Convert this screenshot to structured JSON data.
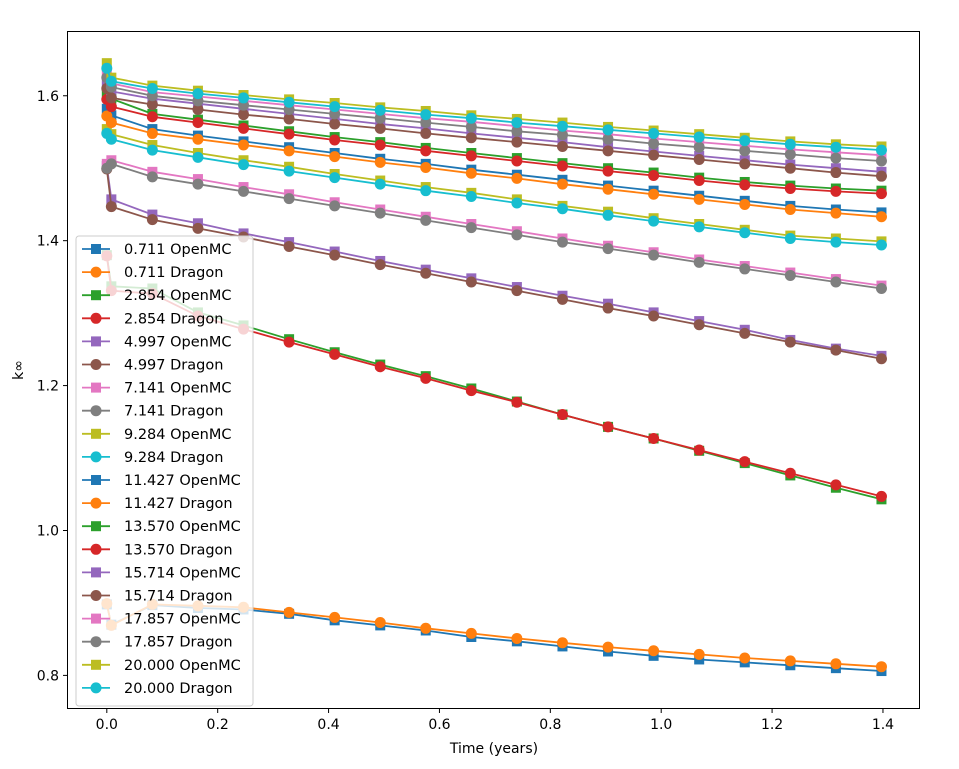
{
  "chart_data": {
    "type": "line",
    "title": "",
    "xlabel": "Time (years)",
    "ylabel": "k∞",
    "xlim": [
      -0.07,
      1.465
    ],
    "ylim": [
      0.755,
      1.688
    ],
    "xticks": [
      0.0,
      0.2,
      0.4,
      0.6,
      0.8,
      1.0,
      1.2,
      1.4
    ],
    "xtick_labels": [
      "0.0",
      "0.2",
      "0.4",
      "0.6",
      "0.8",
      "1.0",
      "1.2",
      "1.4"
    ],
    "yticks": [
      0.8,
      1.0,
      1.2,
      1.4,
      1.6
    ],
    "ytick_labels": [
      "0.8",
      "1.0",
      "1.2",
      "1.4",
      "1.6"
    ],
    "grid": false,
    "legend_position": "lower-left",
    "x": [
      0.0,
      0.0082,
      0.0822,
      0.1644,
      0.2466,
      0.3288,
      0.411,
      0.4932,
      0.5753,
      0.6575,
      0.7397,
      0.8219,
      0.9041,
      0.9863,
      1.0685,
      1.1507,
      1.2329,
      1.3151,
      1.3973
    ],
    "series": [
      {
        "name": "0.711 OpenMC",
        "color": "#1f77b4",
        "marker": "square",
        "values": [
          0.898,
          0.87,
          0.897,
          0.893,
          0.891,
          0.885,
          0.876,
          0.869,
          0.862,
          0.853,
          0.847,
          0.84,
          0.833,
          0.827,
          0.822,
          0.818,
          0.814,
          0.81,
          0.806
        ]
      },
      {
        "name": "0.711 Dragon",
        "color": "#ff7f0e",
        "marker": "circle",
        "values": [
          0.899,
          0.869,
          0.898,
          0.896,
          0.894,
          0.887,
          0.88,
          0.873,
          0.865,
          0.858,
          0.851,
          0.845,
          0.839,
          0.834,
          0.829,
          0.824,
          0.82,
          0.816,
          0.812
        ]
      },
      {
        "name": "2.854 OpenMC",
        "color": "#2ca02c",
        "marker": "square",
        "values": [
          1.38,
          1.337,
          1.334,
          1.301,
          1.283,
          1.264,
          1.246,
          1.229,
          1.213,
          1.196,
          1.178,
          1.16,
          1.143,
          1.127,
          1.11,
          1.093,
          1.076,
          1.059,
          1.043
        ]
      },
      {
        "name": "2.854 Dragon",
        "color": "#d62728",
        "marker": "circle",
        "values": [
          1.379,
          1.331,
          1.327,
          1.296,
          1.278,
          1.26,
          1.243,
          1.226,
          1.21,
          1.193,
          1.177,
          1.16,
          1.143,
          1.127,
          1.111,
          1.095,
          1.079,
          1.063,
          1.047
        ]
      },
      {
        "name": "4.997 OpenMC",
        "color": "#9467bd",
        "marker": "square",
        "values": [
          1.503,
          1.457,
          1.436,
          1.424,
          1.41,
          1.398,
          1.385,
          1.372,
          1.36,
          1.348,
          1.336,
          1.324,
          1.313,
          1.301,
          1.289,
          1.277,
          1.263,
          1.251,
          1.241
        ]
      },
      {
        "name": "4.997 Dragon",
        "color": "#8c564b",
        "marker": "circle",
        "values": [
          1.499,
          1.447,
          1.429,
          1.417,
          1.405,
          1.392,
          1.38,
          1.367,
          1.355,
          1.343,
          1.331,
          1.319,
          1.307,
          1.296,
          1.284,
          1.272,
          1.26,
          1.249,
          1.237
        ]
      },
      {
        "name": "7.141 OpenMC",
        "color": "#e377c2",
        "marker": "square",
        "values": [
          1.506,
          1.511,
          1.495,
          1.485,
          1.474,
          1.464,
          1.453,
          1.443,
          1.433,
          1.423,
          1.413,
          1.403,
          1.393,
          1.384,
          1.374,
          1.365,
          1.356,
          1.347,
          1.338
        ]
      },
      {
        "name": "7.141 Dragon",
        "color": "#7f7f7f",
        "marker": "circle",
        "values": [
          1.5,
          1.506,
          1.488,
          1.478,
          1.468,
          1.458,
          1.448,
          1.438,
          1.428,
          1.418,
          1.408,
          1.398,
          1.389,
          1.38,
          1.37,
          1.361,
          1.352,
          1.343,
          1.334
        ]
      },
      {
        "name": "9.284 OpenMC",
        "color": "#bcbd22",
        "marker": "square",
        "values": [
          1.554,
          1.547,
          1.532,
          1.521,
          1.511,
          1.502,
          1.492,
          1.483,
          1.474,
          1.466,
          1.457,
          1.448,
          1.44,
          1.431,
          1.423,
          1.415,
          1.407,
          1.403,
          1.399
        ]
      },
      {
        "name": "9.284 Dragon",
        "color": "#17becf",
        "marker": "circle",
        "values": [
          1.548,
          1.54,
          1.525,
          1.515,
          1.505,
          1.496,
          1.487,
          1.478,
          1.469,
          1.461,
          1.452,
          1.444,
          1.435,
          1.427,
          1.419,
          1.411,
          1.403,
          1.398,
          1.394
        ]
      },
      {
        "name": "11.427 OpenMC",
        "color": "#1f77b4",
        "marker": "square",
        "values": [
          1.582,
          1.573,
          1.554,
          1.545,
          1.537,
          1.529,
          1.521,
          1.513,
          1.506,
          1.498,
          1.491,
          1.484,
          1.476,
          1.469,
          1.462,
          1.455,
          1.448,
          1.443,
          1.439
        ]
      },
      {
        "name": "11.427 Dragon",
        "color": "#ff7f0e",
        "marker": "circle",
        "values": [
          1.572,
          1.563,
          1.548,
          1.54,
          1.532,
          1.524,
          1.516,
          1.508,
          1.501,
          1.493,
          1.486,
          1.478,
          1.471,
          1.464,
          1.457,
          1.45,
          1.443,
          1.438,
          1.433
        ]
      },
      {
        "name": "13.570 OpenMC",
        "color": "#2ca02c",
        "marker": "square",
        "values": [
          1.605,
          1.596,
          1.575,
          1.567,
          1.559,
          1.551,
          1.543,
          1.536,
          1.528,
          1.521,
          1.514,
          1.507,
          1.5,
          1.494,
          1.487,
          1.481,
          1.476,
          1.472,
          1.469
        ]
      },
      {
        "name": "13.570 Dragon",
        "color": "#d62728",
        "marker": "circle",
        "values": [
          1.595,
          1.585,
          1.571,
          1.563,
          1.555,
          1.547,
          1.539,
          1.532,
          1.524,
          1.517,
          1.51,
          1.503,
          1.496,
          1.49,
          1.483,
          1.477,
          1.472,
          1.468,
          1.465
        ]
      },
      {
        "name": "15.714 OpenMC",
        "color": "#9467bd",
        "marker": "square",
        "values": [
          1.618,
          1.606,
          1.596,
          1.589,
          1.582,
          1.575,
          1.568,
          1.561,
          1.555,
          1.548,
          1.542,
          1.536,
          1.529,
          1.523,
          1.517,
          1.511,
          1.505,
          1.5,
          1.495
        ]
      },
      {
        "name": "15.714 Dragon",
        "color": "#8c564b",
        "marker": "circle",
        "values": [
          1.61,
          1.597,
          1.588,
          1.581,
          1.574,
          1.568,
          1.561,
          1.555,
          1.548,
          1.542,
          1.536,
          1.53,
          1.524,
          1.518,
          1.512,
          1.506,
          1.5,
          1.494,
          1.489
        ]
      },
      {
        "name": "17.857 OpenMC",
        "color": "#e377c2",
        "marker": "square",
        "values": [
          1.63,
          1.617,
          1.605,
          1.599,
          1.593,
          1.587,
          1.581,
          1.575,
          1.569,
          1.564,
          1.558,
          1.552,
          1.547,
          1.541,
          1.536,
          1.531,
          1.526,
          1.522,
          1.518
        ]
      },
      {
        "name": "17.857 Dragon",
        "color": "#7f7f7f",
        "marker": "circle",
        "values": [
          1.625,
          1.612,
          1.6,
          1.593,
          1.587,
          1.581,
          1.575,
          1.569,
          1.563,
          1.557,
          1.551,
          1.546,
          1.54,
          1.534,
          1.529,
          1.524,
          1.519,
          1.514,
          1.51
        ]
      },
      {
        "name": "20.000 OpenMC",
        "color": "#bcbd22",
        "marker": "square",
        "values": [
          1.645,
          1.625,
          1.614,
          1.607,
          1.601,
          1.595,
          1.59,
          1.584,
          1.579,
          1.573,
          1.568,
          1.563,
          1.557,
          1.552,
          1.547,
          1.542,
          1.537,
          1.533,
          1.53
        ]
      },
      {
        "name": "20.000 Dragon",
        "color": "#17becf",
        "marker": "circle",
        "values": [
          1.638,
          1.62,
          1.61,
          1.603,
          1.597,
          1.591,
          1.585,
          1.58,
          1.574,
          1.569,
          1.563,
          1.558,
          1.553,
          1.548,
          1.543,
          1.538,
          1.533,
          1.529,
          1.525
        ]
      }
    ]
  }
}
